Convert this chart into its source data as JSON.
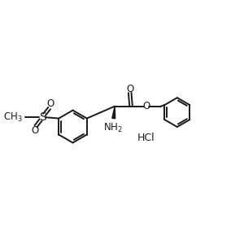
{
  "bg_color": "#ffffff",
  "line_color": "#1a1a1a",
  "line_width": 1.4,
  "font_size": 8.5,
  "figsize": [
    3.0,
    3.0
  ],
  "dpi": 100,
  "xlim": [
    0,
    10
  ],
  "ylim": [
    2,
    8
  ]
}
